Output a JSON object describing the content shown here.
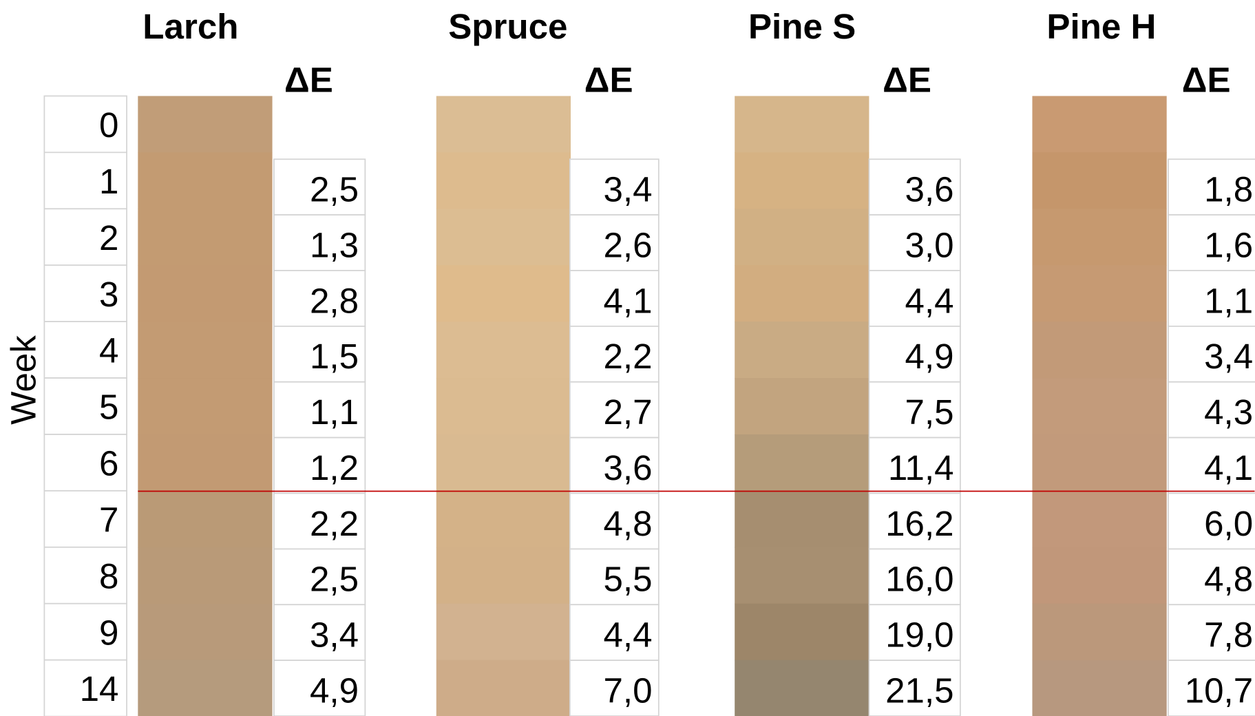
{
  "axis_label": "Week",
  "delta_header": "ΔE",
  "weeks": [
    0,
    1,
    2,
    3,
    4,
    5,
    6,
    7,
    8,
    9,
    14
  ],
  "woods": [
    {
      "name": "Larch",
      "colors": [
        "#c19d78",
        "#c39b72",
        "#c39b72",
        "#c39a72",
        "#c39b73",
        "#c39b73",
        "#c29a73",
        "#ba9a76",
        "#b99a78",
        "#b89a7a",
        "#b59b7d"
      ],
      "delta_e": [
        "2,5",
        "1,3",
        "2,8",
        "1,5",
        "1,1",
        "1,2",
        "2,2",
        "2,5",
        "3,4",
        "4,9"
      ]
    },
    {
      "name": "Spruce",
      "colors": [
        "#dbbd94",
        "#ddbb8e",
        "#dcbd92",
        "#dfbb8c",
        "#dcbc92",
        "#dbbb91",
        "#d9ba91",
        "#d4b288",
        "#d3b188",
        "#d2b290",
        "#ceac89"
      ],
      "delta_e": [
        "3,4",
        "2,6",
        "4,1",
        "2,2",
        "2,7",
        "3,6",
        "4,8",
        "5,5",
        "4,4",
        "7,0"
      ]
    },
    {
      "name": "Pine S",
      "colors": [
        "#d6b68b",
        "#d6b283",
        "#d1b084",
        "#d2ad80",
        "#c9ab84",
        "#c2a47f",
        "#b59c7a",
        "#a68e70",
        "#a78f71",
        "#9d8669",
        "#95866f"
      ],
      "delta_e": [
        "3,6",
        "3,0",
        "4,4",
        "4,9",
        "7,5",
        "11,4",
        "16,2",
        "16,0",
        "19,0",
        "21,5"
      ]
    },
    {
      "name": "Pine H",
      "colors": [
        "#c99a72",
        "#c5966b",
        "#c6996f",
        "#c69a73",
        "#c29a78",
        "#c39b7b",
        "#c29a7b",
        "#c2987b",
        "#c1977a",
        "#bb987b",
        "#b7987f"
      ],
      "delta_e": [
        "1,8",
        "1,6",
        "1,1",
        "3,4",
        "4,3",
        "4,1",
        "6,0",
        "4,8",
        "7,8",
        "10,7"
      ]
    }
  ]
}
